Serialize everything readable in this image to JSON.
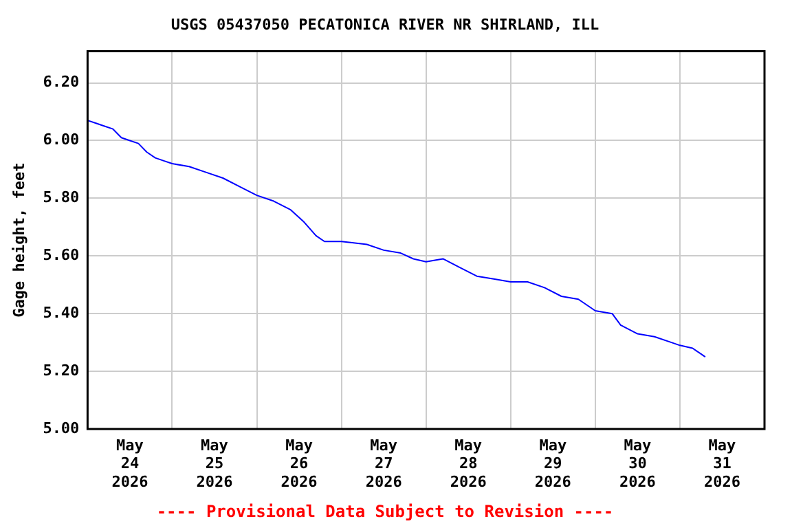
{
  "chart_data": {
    "type": "line",
    "title": "USGS 05437050 PECATONICA RIVER NR SHIRLAND, ILL",
    "ylabel": "Gage height, feet",
    "annotations": [
      "---- Provisional Data Subject to Revision ----"
    ],
    "x": [
      "2026-05-24T00:00",
      "2026-05-24T02:24",
      "2026-05-24T04:48",
      "2026-05-24T07:12",
      "2026-05-24T09:36",
      "2026-05-24T12:00",
      "2026-05-24T14:24",
      "2026-05-24T16:48",
      "2026-05-24T19:12",
      "2026-05-24T21:36",
      "2026-05-25T00:00",
      "2026-05-25T04:48",
      "2026-05-25T09:36",
      "2026-05-25T14:24",
      "2026-05-25T19:12",
      "2026-05-26T00:00",
      "2026-05-26T04:48",
      "2026-05-26T09:36",
      "2026-05-26T13:12",
      "2026-05-26T16:48",
      "2026-05-26T19:12",
      "2026-05-27T00:00",
      "2026-05-27T07:12",
      "2026-05-27T12:00",
      "2026-05-27T16:48",
      "2026-05-27T20:24",
      "2026-05-28T00:00",
      "2026-05-28T04:48",
      "2026-05-28T09:36",
      "2026-05-28T14:24",
      "2026-05-28T19:12",
      "2026-05-29T00:00",
      "2026-05-29T04:48",
      "2026-05-29T09:36",
      "2026-05-29T14:24",
      "2026-05-29T19:12",
      "2026-05-30T00:00",
      "2026-05-30T04:48",
      "2026-05-30T07:12",
      "2026-05-30T12:00",
      "2026-05-30T16:48",
      "2026-05-30T21:36",
      "2026-05-31T00:00",
      "2026-05-31T03:36",
      "2026-05-31T06:00",
      "2026-05-31T07:12"
    ],
    "series": [
      {
        "color": "#0000ff",
        "values": [
          6.07,
          6.06,
          6.05,
          6.04,
          6.01,
          6.0,
          5.99,
          5.96,
          5.94,
          5.93,
          5.92,
          5.91,
          5.89,
          5.87,
          5.84,
          5.81,
          5.79,
          5.76,
          5.72,
          5.67,
          5.65,
          5.65,
          5.64,
          5.62,
          5.61,
          5.59,
          5.58,
          5.59,
          5.56,
          5.53,
          5.52,
          5.51,
          5.51,
          5.49,
          5.46,
          5.45,
          5.41,
          5.4,
          5.36,
          5.33,
          5.32,
          5.3,
          5.29,
          5.28,
          5.26,
          5.25
        ]
      }
    ],
    "xlim": [
      "2026-05-24T00:00",
      "2026-06-01T00:00"
    ],
    "xticks": [
      {
        "value": "2026-05-24T12:00",
        "label": "May\n24\n2026"
      },
      {
        "value": "2026-05-25T00:00",
        "label": null
      },
      {
        "value": "2026-05-25T12:00",
        "label": "May\n25\n2026"
      },
      {
        "value": "2026-05-26T00:00",
        "label": null
      },
      {
        "value": "2026-05-26T12:00",
        "label": "May\n26\n2026"
      },
      {
        "value": "2026-05-27T00:00",
        "label": null
      },
      {
        "value": "2026-05-27T12:00",
        "label": "May\n27\n2026"
      },
      {
        "value": "2026-05-28T00:00",
        "label": null
      },
      {
        "value": "2026-05-28T12:00",
        "label": "May\n28\n2026"
      },
      {
        "value": "2026-05-29T00:00",
        "label": null
      },
      {
        "value": "2026-05-29T12:00",
        "label": "May\n29\n2026"
      },
      {
        "value": "2026-05-30T00:00",
        "label": null
      },
      {
        "value": "2026-05-30T12:00",
        "label": "May\n30\n2026"
      },
      {
        "value": "2026-05-31T00:00",
        "label": null
      },
      {
        "value": "2026-05-31T12:00",
        "label": "May\n31\n2026"
      }
    ],
    "ylim": [
      5.0,
      6.31
    ],
    "yticks": [
      {
        "value": 5.0,
        "label": "5.00"
      },
      {
        "value": 5.2,
        "label": "5.20"
      },
      {
        "value": 5.4,
        "label": "5.40"
      },
      {
        "value": 5.6,
        "label": "5.60"
      },
      {
        "value": 5.8,
        "label": "5.80"
      },
      {
        "value": 6.0,
        "label": "6.00"
      },
      {
        "value": 6.2,
        "label": "6.20"
      }
    ],
    "grid": true,
    "legend": false,
    "marker": "none",
    "line_style": "solid"
  }
}
